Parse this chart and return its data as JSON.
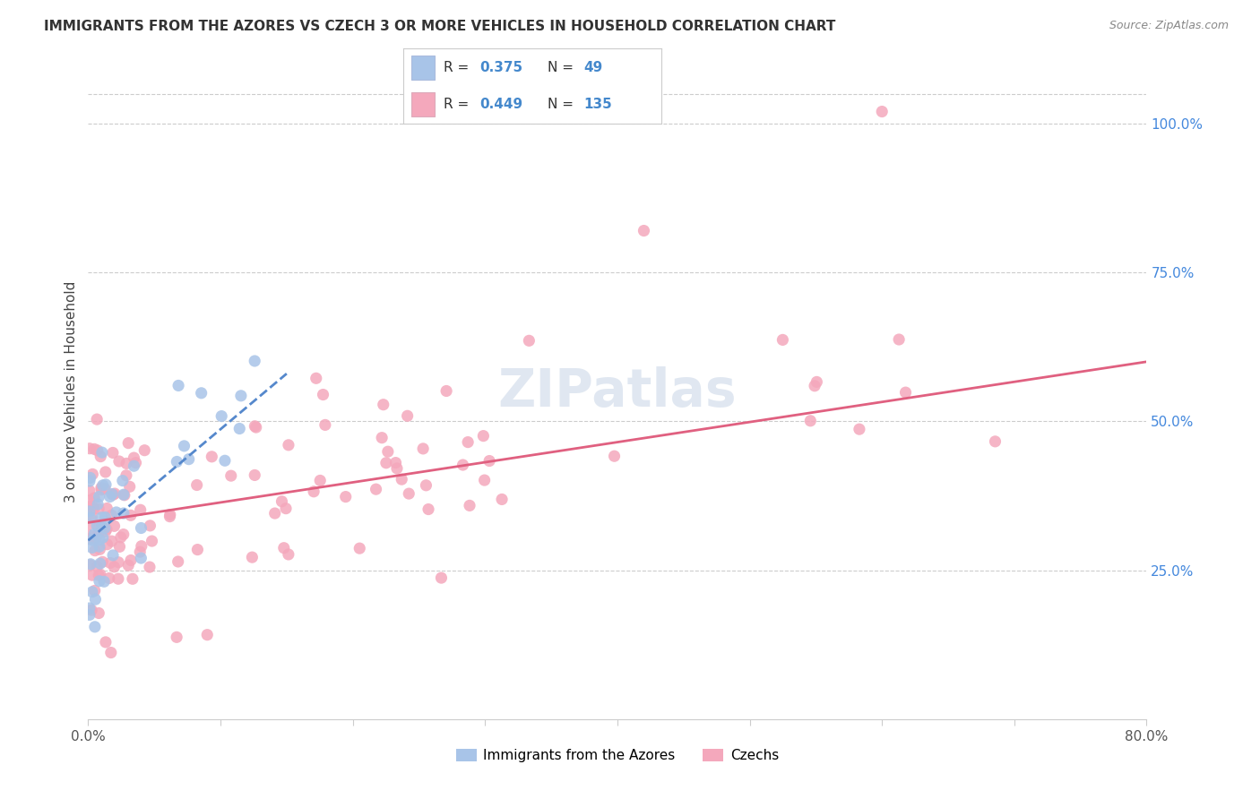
{
  "title": "IMMIGRANTS FROM THE AZORES VS CZECH 3 OR MORE VEHICLES IN HOUSEHOLD CORRELATION CHART",
  "source": "Source: ZipAtlas.com",
  "ylabel": "3 or more Vehicles in Household",
  "xlim": [
    0.0,
    0.8
  ],
  "ylim": [
    0.0,
    1.1
  ],
  "azores_R": 0.375,
  "azores_N": 49,
  "czech_R": 0.449,
  "czech_N": 135,
  "azores_color": "#a8c4e8",
  "czech_color": "#f4a8bc",
  "azores_line_color": "#5588cc",
  "czech_line_color": "#e06080",
  "watermark_color": "#ccd8e8",
  "grid_color": "#cccccc",
  "right_tick_color": "#4488dd",
  "title_color": "#333333",
  "source_color": "#888888"
}
